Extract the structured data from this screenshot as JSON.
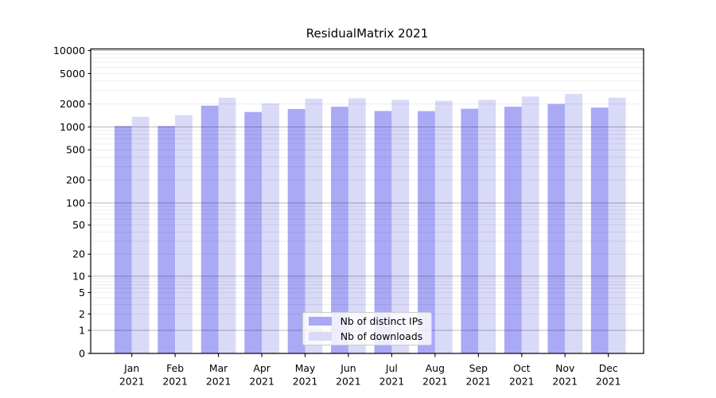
{
  "chart_data": {
    "type": "bar",
    "title": "ResidualMatrix 2021",
    "categories": [
      "Jan 2021",
      "Feb 2021",
      "Mar 2021",
      "Apr 2021",
      "May 2021",
      "Jun 2021",
      "Jul 2021",
      "Aug 2021",
      "Sep 2021",
      "Oct 2021",
      "Nov 2021",
      "Dec 2021"
    ],
    "months": [
      "Jan",
      "Feb",
      "Mar",
      "Apr",
      "May",
      "Jun",
      "Jul",
      "Aug",
      "Sep",
      "Oct",
      "Nov",
      "Dec"
    ],
    "year_label": "2021",
    "series": [
      {
        "name": "Nb of distinct IPs",
        "color": "#a9a9f6",
        "values": [
          1030,
          1030,
          1900,
          1570,
          1720,
          1840,
          1620,
          1610,
          1730,
          1840,
          2000,
          1790
        ]
      },
      {
        "name": "Nb of downloads",
        "color": "#d9d9f8",
        "values": [
          1360,
          1430,
          2410,
          2030,
          2340,
          2370,
          2270,
          2200,
          2260,
          2500,
          2700,
          2420
        ]
      }
    ],
    "xlabel": "",
    "ylabel": "",
    "yscale": "symlog",
    "ylim": [
      0,
      10500
    ],
    "y_ticks": [
      0,
      1,
      2,
      5,
      10,
      20,
      50,
      100,
      200,
      500,
      1000,
      2000,
      5000,
      10000
    ],
    "grid": "both",
    "legend_position": "lower center"
  }
}
